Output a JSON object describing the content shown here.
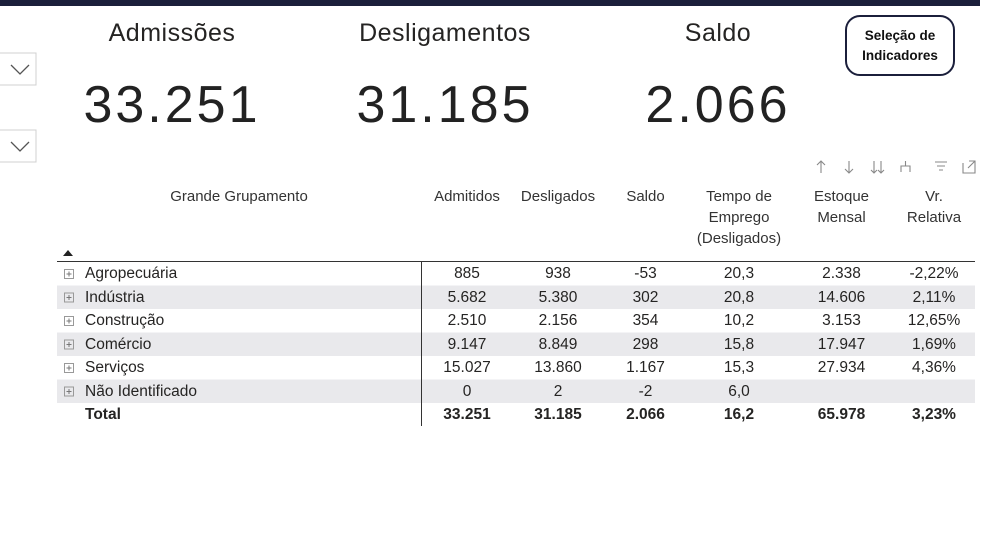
{
  "cards": [
    {
      "label": "Admissões",
      "value": "33.251"
    },
    {
      "label": "Desligamentos",
      "value": "31.185"
    },
    {
      "label": "Saldo",
      "value": "2.066"
    }
  ],
  "button": {
    "label": "Seleção de Indicadores"
  },
  "table": {
    "columns": [
      "Grande Grupamento",
      "Admitidos",
      "Desligados",
      "Saldo",
      "Tempo de Emprego (Desligados)",
      "Estoque Mensal",
      "Vr. Relativa"
    ],
    "rows": [
      [
        "Agropecuária",
        "885",
        "938",
        "-53",
        "20,3",
        "2.338",
        "-2,22%"
      ],
      [
        "Indústria",
        "5.682",
        "5.380",
        "302",
        "20,8",
        "14.606",
        "2,11%"
      ],
      [
        "Construção",
        "2.510",
        "2.156",
        "354",
        "10,2",
        "3.153",
        "12,65%"
      ],
      [
        "Comércio",
        "9.147",
        "8.849",
        "298",
        "15,8",
        "17.947",
        "1,69%"
      ],
      [
        "Serviços",
        "15.027",
        "13.860",
        "1.167",
        "15,3",
        "27.934",
        "4,36%"
      ],
      [
        "Não Identificado",
        "0",
        "2",
        "-2",
        "6,0",
        null,
        null
      ]
    ],
    "total": [
      "Total",
      "33.251",
      "31.185",
      "2.066",
      "16,2",
      "65.978",
      "3,23%"
    ]
  }
}
